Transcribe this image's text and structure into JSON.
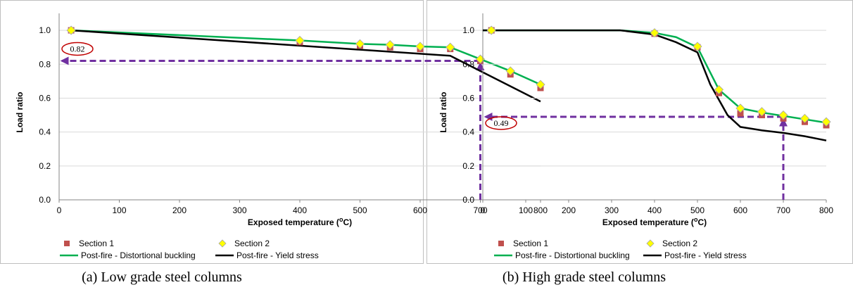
{
  "charts": [
    {
      "chart_data": {
        "type": "line",
        "caption": "(a) Low grade steel columns",
        "xlabel": {
          "prefix": "Exposed temperature (",
          "sup": "o",
          "suffix": "C)"
        },
        "ylabel": "Load ratio",
        "xlim": [
          0,
          800
        ],
        "xticks": [
          0,
          100,
          200,
          300,
          400,
          500,
          600,
          700,
          800
        ],
        "ylim": [
          0,
          1.1
        ],
        "yticks": [
          {
            "value": 0,
            "label": "0.0"
          },
          0.2,
          0.4,
          0.6,
          0.8,
          {
            "value": 1,
            "label": "1.0"
          }
        ],
        "grid": true,
        "series": [
          {
            "name": "Section 1",
            "kind": "scatter",
            "marker": "square",
            "color": "#c0504d",
            "x": [
              20,
              400,
              500,
              550,
              600,
              650,
              700,
              750,
              800
            ],
            "values": [
              1.0,
              0.93,
              0.91,
              0.9,
              0.89,
              0.89,
              0.82,
              0.74,
              0.66
            ]
          },
          {
            "name": "Section 2",
            "kind": "scatter",
            "marker": "diamond",
            "color": "#ffff00",
            "x": [
              20,
              400,
              500,
              550,
              600,
              650,
              700,
              750,
              800
            ],
            "values": [
              1.0,
              0.94,
              0.92,
              0.915,
              0.905,
              0.9,
              0.83,
              0.76,
              0.68
            ]
          },
          {
            "name": "Post-fire - Distortional buckling",
            "kind": "line",
            "color": "#00b050",
            "x": [
              20,
              400,
              500,
              550,
              600,
              650,
              700,
              750,
              800
            ],
            "values": [
              1.0,
              0.94,
              0.92,
              0.915,
              0.905,
              0.9,
              0.83,
              0.76,
              0.68
            ]
          },
          {
            "name": "Post-fire - Yield stress",
            "kind": "line",
            "color": "#000000",
            "x": [
              20,
              650,
              800
            ],
            "values": [
              1.0,
              0.85,
              0.58
            ]
          }
        ],
        "annotation": {
          "x": 700,
          "y": 0.82,
          "label": "0.82",
          "color": "#7030a0"
        }
      }
    },
    {
      "chart_data": {
        "type": "line",
        "caption": "(b) High grade steel columns",
        "xlabel": {
          "prefix": "Exposed temperature (",
          "sup": "o",
          "suffix": "C)"
        },
        "ylabel": "Load ratio",
        "xlim": [
          0,
          800
        ],
        "xticks": [
          0,
          100,
          200,
          300,
          400,
          500,
          600,
          700,
          800
        ],
        "ylim": [
          0,
          1.1
        ],
        "yticks": [
          {
            "value": 0,
            "label": "0.0"
          },
          0.2,
          0.4,
          0.6,
          0.8,
          {
            "value": 1,
            "label": "1.0"
          }
        ],
        "grid": true,
        "series": [
          {
            "name": "Section 1",
            "kind": "scatter",
            "marker": "square",
            "color": "#c0504d",
            "x": [
              20,
              400,
              500,
              550,
              600,
              650,
              700,
              750,
              800
            ],
            "values": [
              1.0,
              0.98,
              0.9,
              0.63,
              0.51,
              0.5,
              0.48,
              0.46,
              0.44
            ]
          },
          {
            "name": "Section 2",
            "kind": "scatter",
            "marker": "diamond",
            "color": "#ffff00",
            "x": [
              20,
              400,
              500,
              550,
              600,
              650,
              700,
              750,
              800
            ],
            "values": [
              1.0,
              0.985,
              0.905,
              0.65,
              0.54,
              0.52,
              0.5,
              0.48,
              0.46
            ]
          },
          {
            "name": "Post-fire - Distortional buckling",
            "kind": "line",
            "color": "#00b050",
            "x": [
              0,
              320,
              400,
              450,
              500,
              530,
              550,
              600,
              650,
              700,
              750,
              800
            ],
            "values": [
              1.0,
              1.0,
              0.985,
              0.96,
              0.9,
              0.75,
              0.65,
              0.54,
              0.515,
              0.495,
              0.475,
              0.455
            ]
          },
          {
            "name": "Post-fire - Yield stress",
            "kind": "line",
            "color": "#000000",
            "x": [
              0,
              320,
              400,
              450,
              500,
              530,
              570,
              600,
              650,
              700,
              750,
              800
            ],
            "values": [
              1.0,
              1.0,
              0.975,
              0.93,
              0.87,
              0.68,
              0.5,
              0.43,
              0.41,
              0.395,
              0.375,
              0.35
            ]
          }
        ],
        "annotation": {
          "x": 700,
          "y": 0.49,
          "label": "0.49",
          "color": "#7030a0"
        }
      }
    }
  ]
}
